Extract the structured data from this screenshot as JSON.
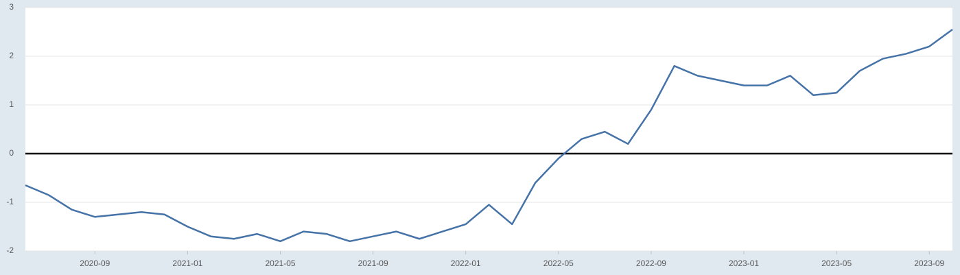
{
  "chart_data": {
    "type": "line",
    "x": [
      "2020-06",
      "2020-07",
      "2020-08",
      "2020-09",
      "2020-10",
      "2020-11",
      "2020-12",
      "2021-01",
      "2021-02",
      "2021-03",
      "2021-04",
      "2021-05",
      "2021-06",
      "2021-07",
      "2021-08",
      "2021-09",
      "2021-10",
      "2021-11",
      "2021-12",
      "2022-01",
      "2022-02",
      "2022-03",
      "2022-04",
      "2022-05",
      "2022-06",
      "2022-07",
      "2022-08",
      "2022-09",
      "2022-10",
      "2022-11",
      "2022-12",
      "2023-01",
      "2023-02",
      "2023-03",
      "2023-04",
      "2023-05",
      "2023-06",
      "2023-07",
      "2023-08",
      "2023-09",
      "2023-10"
    ],
    "series": [
      {
        "color": "#4572a7",
        "values": [
          -0.65,
          -0.85,
          -1.15,
          -1.3,
          -1.25,
          -1.2,
          -1.25,
          -1.5,
          -1.7,
          -1.75,
          -1.65,
          -1.8,
          -1.6,
          -1.65,
          -1.8,
          -1.7,
          -1.6,
          -1.75,
          -1.6,
          -1.45,
          -1.05,
          -1.45,
          -0.6,
          -0.1,
          0.3,
          0.45,
          0.2,
          0.9,
          1.8,
          1.6,
          1.5,
          1.4,
          1.4,
          1.6,
          1.2,
          1.25,
          1.7,
          1.95,
          2.05,
          2.2,
          2.55
        ]
      }
    ],
    "xlim": [
      "2020-06",
      "2023-10"
    ],
    "xticks": [
      "2020-09",
      "2021-01",
      "2021-05",
      "2021-09",
      "2022-01",
      "2022-05",
      "2022-09",
      "2023-01",
      "2023-05",
      "2023-09"
    ],
    "ylim": [
      -2,
      3
    ],
    "yticks": [
      -2,
      -1,
      0,
      1,
      2,
      3
    ],
    "grid": true
  }
}
